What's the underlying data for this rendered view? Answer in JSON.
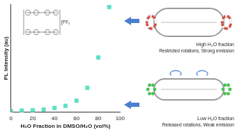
{
  "chart_data": {
    "type": "scatter",
    "x": [
      0,
      10,
      20,
      30,
      40,
      50,
      60,
      70,
      80,
      90
    ],
    "values": [
      10,
      12,
      15,
      20,
      30,
      45,
      80,
      170,
      380,
      730
    ],
    "color": "#5ee0c4",
    "marker": "square",
    "xlabel": "H₂O Fraction in DMSO/H₂O (vol%)",
    "ylabel": "PL Intensity (au)",
    "xlim": [
      0,
      100
    ],
    "xticks": [
      0,
      20,
      40,
      60,
      80,
      100
    ],
    "ylim": [
      0,
      750
    ],
    "grid": false,
    "tick_labels": "x",
    "annotations": [
      "[PF₆]₄",
      "High H₂O fraction",
      "Restricted rotations, Strong emission",
      "Low H₂O fraction",
      "Released rotations, Weak emission"
    ]
  }
}
